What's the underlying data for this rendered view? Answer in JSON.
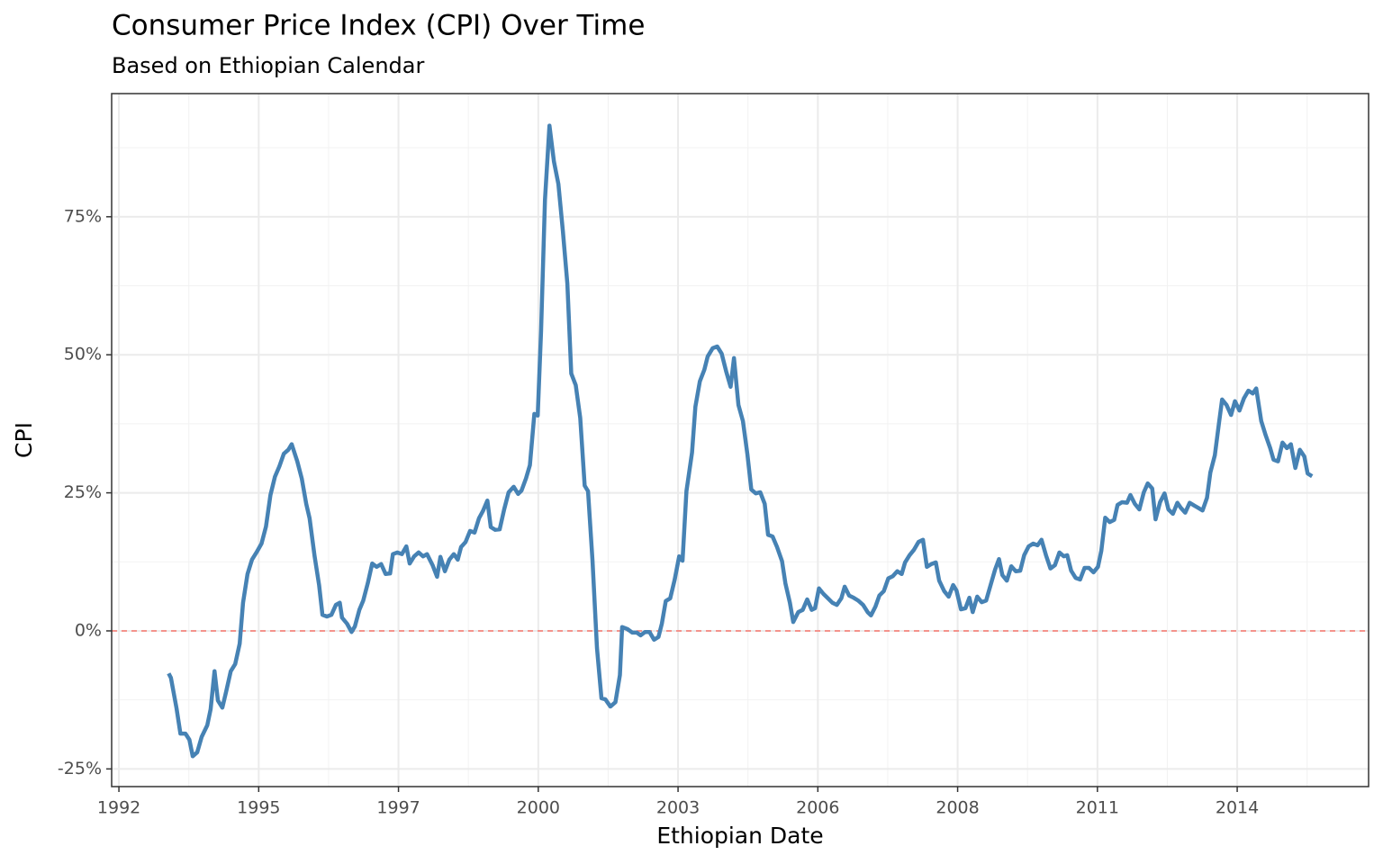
{
  "chart_data": {
    "type": "line",
    "title": "Consumer Price Index (CPI) Over Time",
    "subtitle": "Based on Ethiopian Calendar",
    "x_label": "Ethiopian Date",
    "y_label": "CPI",
    "color": "#4682b4",
    "reference_line": 0,
    "reference_color": "#f8766d",
    "grid": true,
    "xlim": [
      1999.87,
      2022.35
    ],
    "ylim": [
      -28.2,
      97.3
    ],
    "xticks": [
      {
        "value": 2000,
        "label": "1992"
      },
      {
        "value": 2002.5,
        "label": "1995"
      },
      {
        "value": 2005,
        "label": "1997"
      },
      {
        "value": 2007.5,
        "label": "2000"
      },
      {
        "value": 2010,
        "label": "2003"
      },
      {
        "value": 2012.5,
        "label": "2006"
      },
      {
        "value": 2015,
        "label": "2008"
      },
      {
        "value": 2017.5,
        "label": "2011"
      },
      {
        "value": 2020,
        "label": "2014"
      }
    ],
    "minor_xticks": [
      2001.25,
      2003.75,
      2006.25,
      2008.75,
      2011.25,
      2013.75,
      2016.25,
      2018.75,
      2021.25
    ],
    "yticks": [
      {
        "value": -25,
        "label": "-25%"
      },
      {
        "value": 0,
        "label": "0%"
      },
      {
        "value": 25,
        "label": "25%"
      },
      {
        "value": 50,
        "label": "50%"
      },
      {
        "value": 75,
        "label": "75%"
      }
    ],
    "minor_yticks": [
      -12.5,
      12.5,
      37.5,
      62.5,
      87.5
    ],
    "x": [
      2000.89,
      2000.93,
      2001.03,
      2001.1,
      2001.19,
      2001.26,
      2001.32,
      2001.4,
      2001.48,
      2001.58,
      2001.64,
      2001.71,
      2001.77,
      2001.85,
      2001.92,
      2002.0,
      2002.08,
      2002.16,
      2002.22,
      2002.3,
      2002.38,
      2002.46,
      2002.55,
      2002.63,
      2002.71,
      2002.79,
      2002.87,
      2002.95,
      2003.03,
      2003.09,
      2003.19,
      2003.27,
      2003.35,
      2003.41,
      2003.5,
      2003.58,
      2003.64,
      2003.72,
      2003.8,
      2003.88,
      2003.95,
      2003.99,
      2004.08,
      2004.16,
      2004.22,
      2004.3,
      2004.37,
      2004.45,
      2004.53,
      2004.61,
      2004.69,
      2004.77,
      2004.85,
      2004.9,
      2004.98,
      2005.06,
      2005.14,
      2005.2,
      2005.28,
      2005.36,
      2005.44,
      2005.51,
      2005.61,
      2005.69,
      2005.75,
      2005.83,
      2005.91,
      2005.99,
      2006.06,
      2006.12,
      2006.2,
      2006.28,
      2006.36,
      2006.44,
      2006.51,
      2006.59,
      2006.65,
      2006.73,
      2006.81,
      2006.89,
      2006.97,
      2007.06,
      2007.14,
      2007.2,
      2007.28,
      2007.35,
      2007.43,
      2007.49,
      2007.55,
      2007.62,
      2007.7,
      2007.78,
      2007.86,
      2007.94,
      2008.02,
      2008.09,
      2008.17,
      2008.25,
      2008.33,
      2008.39,
      2008.47,
      2008.55,
      2008.63,
      2008.7,
      2008.79,
      2008.88,
      2008.96,
      2009.0,
      2009.1,
      2009.18,
      2009.26,
      2009.33,
      2009.41,
      2009.49,
      2009.57,
      2009.65,
      2009.71,
      2009.78,
      2009.86,
      2009.94,
      2010.02,
      2010.08,
      2010.15,
      2010.25,
      2010.31,
      2010.39,
      2010.47,
      2010.53,
      2010.62,
      2010.7,
      2010.78,
      2010.86,
      2010.94,
      2011.0,
      2011.08,
      2011.16,
      2011.24,
      2011.31,
      2011.39,
      2011.47,
      2011.55,
      2011.61,
      2011.69,
      2011.77,
      2011.86,
      2011.92,
      2012.0,
      2012.06,
      2012.15,
      2012.23,
      2012.31,
      2012.39,
      2012.45,
      2012.52,
      2012.6,
      2012.68,
      2012.76,
      2012.84,
      2012.92,
      2012.98,
      2013.06,
      2013.14,
      2013.22,
      2013.31,
      2013.39,
      2013.45,
      2013.53,
      2013.6,
      2013.68,
      2013.76,
      2013.84,
      2013.92,
      2014.0,
      2014.06,
      2014.14,
      2014.22,
      2014.3,
      2014.38,
      2014.45,
      2014.53,
      2014.61,
      2014.67,
      2014.76,
      2014.84,
      2014.92,
      2014.98,
      2015.06,
      2015.14,
      2015.21,
      2015.27,
      2015.35,
      2015.43,
      2015.51,
      2015.59,
      2015.67,
      2015.74,
      2015.8,
      2015.88,
      2015.96,
      2016.04,
      2016.12,
      2016.19,
      2016.27,
      2016.35,
      2016.43,
      2016.5,
      2016.58,
      2016.66,
      2016.74,
      2016.82,
      2016.9,
      2016.96,
      2017.03,
      2017.11,
      2017.19,
      2017.27,
      2017.35,
      2017.43,
      2017.51,
      2017.57,
      2017.64,
      2017.72,
      2017.8,
      2017.86,
      2017.94,
      2018.03,
      2018.09,
      2018.17,
      2018.25,
      2018.33,
      2018.4,
      2018.48,
      2018.54,
      2018.62,
      2018.7,
      2018.77,
      2018.85,
      2018.93,
      2018.99,
      2019.07,
      2019.15,
      2019.23,
      2019.3,
      2019.38,
      2019.46,
      2019.52,
      2019.6,
      2019.67,
      2019.73,
      2019.81,
      2019.89,
      2019.96,
      2020.04,
      2020.12,
      2020.2,
      2020.28,
      2020.34,
      2020.43,
      2020.51,
      2020.59,
      2020.65,
      2020.73,
      2020.81,
      2020.89,
      2020.96,
      2021.04,
      2021.12,
      2021.2,
      2021.26,
      2021.34
    ],
    "values": [
      -7.7,
      -8.5,
      -14,
      -18.6,
      -18.6,
      -19.7,
      -22.7,
      -22,
      -19.2,
      -17.1,
      -14.2,
      -7.3,
      -12.6,
      -13.9,
      -10.9,
      -7.3,
      -6,
      -2.3,
      5.1,
      10.3,
      12.9,
      14.2,
      15.8,
      18.9,
      24.6,
      27.9,
      29.8,
      32.1,
      32.8,
      33.8,
      30.7,
      27.6,
      23,
      20.4,
      13.5,
      8.3,
      2.9,
      2.6,
      2.9,
      4.7,
      5.1,
      2.4,
      1.3,
      -0.2,
      0.8,
      3.8,
      5.5,
      8.6,
      12.2,
      11.6,
      12.1,
      10.3,
      10.4,
      13.9,
      14.2,
      13.9,
      15.3,
      12.2,
      13.5,
      14.2,
      13.5,
      13.9,
      11.9,
      9.8,
      13.4,
      10.8,
      12.9,
      13.9,
      12.9,
      15.2,
      16.1,
      18.1,
      17.8,
      20.4,
      21.7,
      23.6,
      18.8,
      18.3,
      18.4,
      22,
      25.1,
      26.1,
      24.8,
      25.4,
      27.6,
      30,
      39.3,
      39,
      54.3,
      78.1,
      91.5,
      85,
      80.9,
      72.4,
      62.9,
      46.6,
      44.5,
      38.6,
      26.3,
      25.3,
      12.7,
      -3.1,
      -12.2,
      -12.4,
      -13.7,
      -12.9,
      -8,
      0.7,
      0.3,
      -0.3,
      -0.3,
      -0.8,
      -0.2,
      -0.2,
      -1.6,
      -1.1,
      1.3,
      5.4,
      5.9,
      9.3,
      13.5,
      12.7,
      25.3,
      32.3,
      40.6,
      45.2,
      47.3,
      49.7,
      51.2,
      51.5,
      50.2,
      47,
      44.2,
      49.4,
      40.9,
      38,
      32,
      25.6,
      24.9,
      25.1,
      23,
      17.4,
      17.1,
      15.2,
      12.6,
      8.6,
      5.1,
      1.6,
      3.4,
      3.8,
      5.7,
      3.8,
      4.1,
      7.7,
      6.7,
      5.9,
      5.1,
      4.7,
      5.9,
      8,
      6.4,
      6,
      5.5,
      4.7,
      3.4,
      2.8,
      4.4,
      6.4,
      7.2,
      9.5,
      9.9,
      10.8,
      10.3,
      12.4,
      13.7,
      14.7,
      16.1,
      16.5,
      11.6,
      12.1,
      12.4,
      9.1,
      7.2,
      6.2,
      8.3,
      7.3,
      3.9,
      4.1,
      6,
      3.4,
      6.2,
      5.2,
      5.5,
      8.3,
      11.1,
      13,
      10.1,
      9.1,
      11.7,
      10.8,
      10.9,
      13.7,
      15.3,
      15.8,
      15.5,
      16.5,
      13.7,
      11.3,
      11.9,
      14.2,
      13.5,
      13.7,
      10.9,
      9.6,
      9.3,
      11.4,
      11.4,
      10.6,
      11.6,
      14.5,
      20.5,
      19.7,
      20.1,
      22.8,
      23.3,
      23.2,
      24.6,
      23,
      22,
      25.1,
      26.7,
      25.8,
      20.2,
      23.3,
      24.9,
      22,
      21.2,
      23.2,
      22.3,
      21.4,
      23.2,
      22.7,
      22.3,
      21.8,
      24.1,
      28.7,
      31.8,
      37.3,
      41.9,
      40.9,
      39.1,
      41.6,
      39.9,
      42.1,
      43.5,
      43,
      43.9,
      38,
      35.4,
      33.1,
      31,
      30.7,
      34.1,
      33.1,
      33.8,
      29.5,
      32.8,
      31.6,
      28.5,
      28
    ]
  }
}
